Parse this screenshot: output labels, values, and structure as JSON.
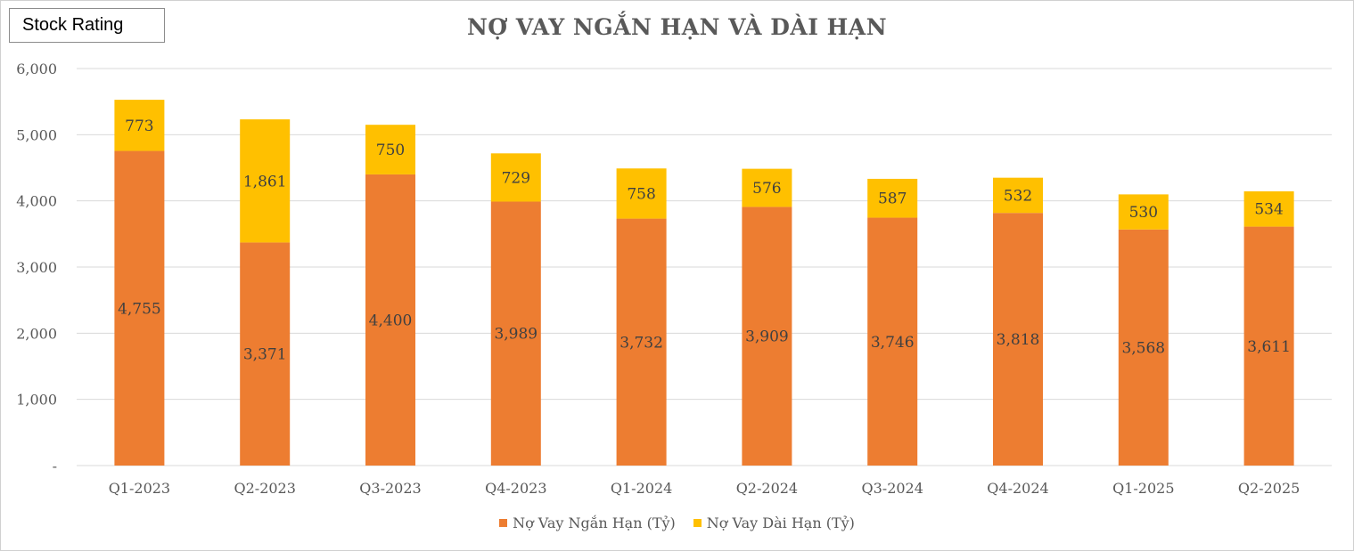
{
  "badge": {
    "label": "Stock Rating"
  },
  "colors": {
    "short_term": "#ED7D31",
    "long_term": "#FFC000",
    "grid": "#d9d9d9",
    "axis_text": "#595959",
    "label_text": "#404040"
  },
  "chart_data": {
    "type": "bar",
    "stacked": true,
    "title": "NỢ VAY NGẮN HẠN VÀ DÀI HẠN",
    "xlabel": "",
    "ylabel": "",
    "categories": [
      "Q1-2023",
      "Q2-2023",
      "Q3-2023",
      "Q4-2023",
      "Q1-2024",
      "Q2-2024",
      "Q3-2024",
      "Q4-2024",
      "Q1-2025",
      "Q2-2025"
    ],
    "series": [
      {
        "name": "Nợ Vay Ngắn Hạn (Tỷ)",
        "values": [
          4755,
          3371,
          4400,
          3989,
          3732,
          3909,
          3746,
          3818,
          3568,
          3611
        ],
        "labels": [
          "4,755",
          "3,371",
          "4,400",
          "3,989",
          "3,732",
          "3,909",
          "3,746",
          "3,818",
          "3,568",
          "3,611"
        ],
        "color": "#ED7D31"
      },
      {
        "name": "Nợ Vay Dài Hạn (Tỷ)",
        "values": [
          773,
          1861,
          750,
          729,
          758,
          576,
          587,
          532,
          530,
          534
        ],
        "labels": [
          "773",
          "1,861",
          "750",
          "729",
          "758",
          "576",
          "587",
          "532",
          "530",
          "534"
        ],
        "color": "#FFC000"
      }
    ],
    "ylim": [
      0,
      6000
    ],
    "yticks": [
      0,
      1000,
      2000,
      3000,
      4000,
      5000,
      6000
    ],
    "ytick_labels": [
      "-",
      "1,000",
      "2,000",
      "3,000",
      "4,000",
      "5,000",
      "6,000"
    ],
    "grid": true,
    "legend": "bottom"
  }
}
